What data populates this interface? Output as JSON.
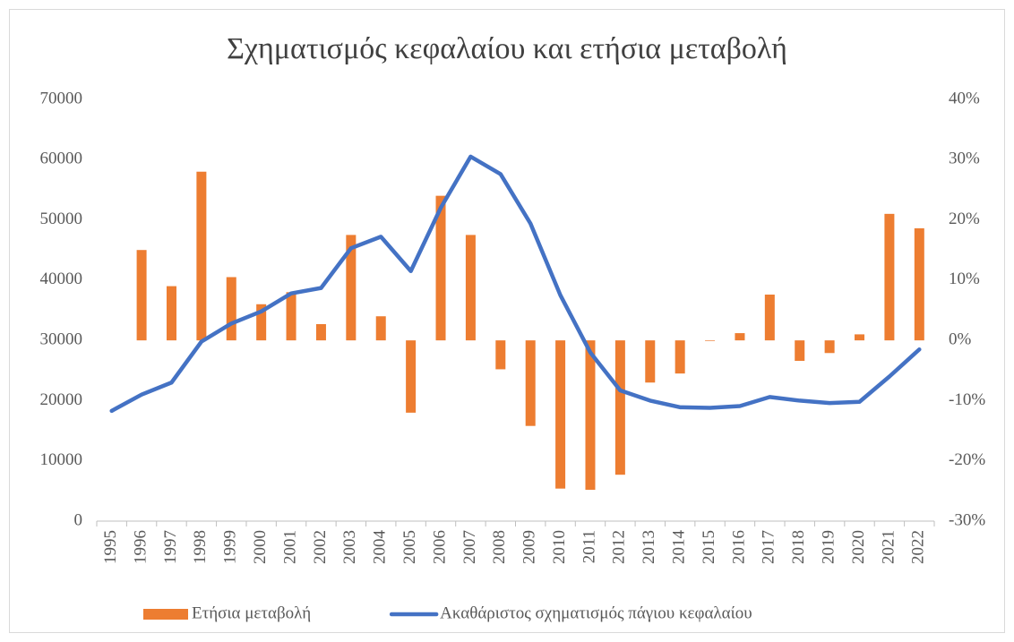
{
  "chart_data": {
    "type": "bar-line",
    "title": "Σχηματισμός κεφαλαίου και ετήσια μεταβολή",
    "categories": [
      "1995",
      "1996",
      "1997",
      "1998",
      "1999",
      "2000",
      "2001",
      "2002",
      "2003",
      "2004",
      "2005",
      "2006",
      "2007",
      "2008",
      "2009",
      "2010",
      "2011",
      "2012",
      "2013",
      "2014",
      "2015",
      "2016",
      "2017",
      "2018",
      "2019",
      "2020",
      "2021",
      "2022"
    ],
    "series": [
      {
        "name": "Ετήσια μεταβολή",
        "type": "bar",
        "axis": "y2",
        "color": "#ed7d31",
        "values": [
          null,
          15,
          9,
          28,
          10.5,
          6,
          8,
          2.7,
          17.5,
          4,
          -12,
          24,
          17.5,
          -4.8,
          -14.2,
          -24.6,
          -24.8,
          -22.3,
          -7,
          -5.5,
          -0.1,
          1.2,
          7.6,
          -3.4,
          -2.1,
          1,
          21,
          18.6
        ]
      },
      {
        "name": "Ακαθάριστος σχηματισμός πάγιου κεφαλαίου",
        "type": "line",
        "color": "#4472c4",
        "values": [
          18300,
          21000,
          23000,
          29800,
          32800,
          34800,
          37800,
          38700,
          45300,
          47200,
          41500,
          52000,
          60500,
          57600,
          49400,
          37500,
          28000,
          21700,
          20000,
          18900,
          18800,
          19100,
          20600,
          20000,
          19600,
          19800,
          24000,
          28500
        ]
      }
    ],
    "ylim": [
      0,
      70000
    ],
    "yticks": [
      0,
      10000,
      20000,
      30000,
      40000,
      50000,
      60000,
      70000
    ],
    "y2lim": [
      -30,
      40
    ],
    "y2ticks": [
      {
        "value": -30,
        "label": "-30%"
      },
      {
        "value": -20,
        "label": "-20%"
      },
      {
        "value": -10,
        "label": "-10%"
      },
      {
        "value": 0,
        "label": "0%"
      },
      {
        "value": 10,
        "label": "10%"
      },
      {
        "value": 20,
        "label": "20%"
      },
      {
        "value": 30,
        "label": "30%"
      },
      {
        "value": 40,
        "label": "40%"
      }
    ],
    "legend": "bottom",
    "grid": false
  }
}
